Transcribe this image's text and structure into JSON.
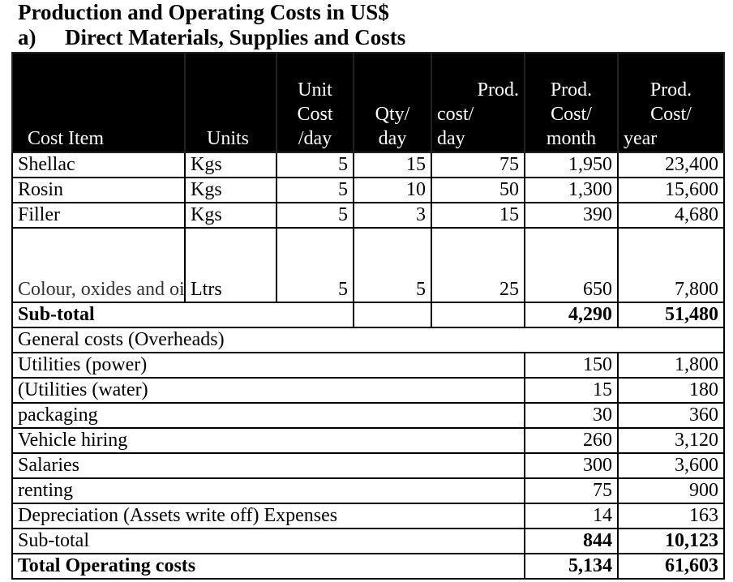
{
  "title": "Production and Operating Costs in US$",
  "subtitle": {
    "letter": "a)",
    "text": "Direct Materials, Supplies and Costs"
  },
  "headers": {
    "cost_item": "Cost Item",
    "units": "Units",
    "unit_cost": [
      "Unit",
      "Cost",
      "/day"
    ],
    "qty": [
      "Qty/",
      "day"
    ],
    "prod_day": [
      "Prod.",
      "cost/",
      "day"
    ],
    "prod_month": [
      "Prod.",
      "Cost/",
      "month"
    ],
    "prod_year": [
      "Prod.",
      "Cost/",
      "year"
    ]
  },
  "materials": [
    {
      "item": "Shellac",
      "units": "Kgs",
      "unit_cost": "5",
      "qty": "15",
      "day": "75",
      "month": "1,950",
      "year": "23,400"
    },
    {
      "item": "Rosin",
      "units": "Kgs",
      "unit_cost": "5",
      "qty": "10",
      "day": "50",
      "month": "1,300",
      "year": "15,600"
    },
    {
      "item": "Filler",
      "units": "Kgs",
      "unit_cost": "5",
      "qty": "3",
      "day": "15",
      "month": "390",
      "year": "4,680"
    },
    {
      "item": "Colour, oxides and oil soluble organic dye",
      "units": "Ltrs",
      "unit_cost": "5",
      "qty": "5",
      "day": "25",
      "month": "650",
      "year": "7,800"
    }
  ],
  "materials_subtotal": {
    "label": "Sub-total",
    "month": "4,290",
    "year": "51,480"
  },
  "overheads_label": "General costs (Overheads)",
  "overheads": [
    {
      "item": "Utilities (power)",
      "month": "150",
      "year": "1,800"
    },
    {
      "item": "(Utilities (water)",
      "month": "15",
      "year": "180"
    },
    {
      "item": "packaging",
      "month": "30",
      "year": "360"
    },
    {
      "item": "Vehicle hiring",
      "month": "260",
      "year": "3,120"
    },
    {
      "item": "Salaries",
      "month": "300",
      "year": "3,600"
    },
    {
      "item": "renting",
      "month": "75",
      "year": "900"
    },
    {
      "item": "Depreciation (Assets write off) Expenses",
      "month": "14",
      "year": "163"
    }
  ],
  "overheads_subtotal": {
    "label": "Sub-total",
    "month": "844",
    "year": "10,123"
  },
  "total": {
    "label": "Total Operating costs",
    "month": "5,134",
    "year": "61,603"
  }
}
